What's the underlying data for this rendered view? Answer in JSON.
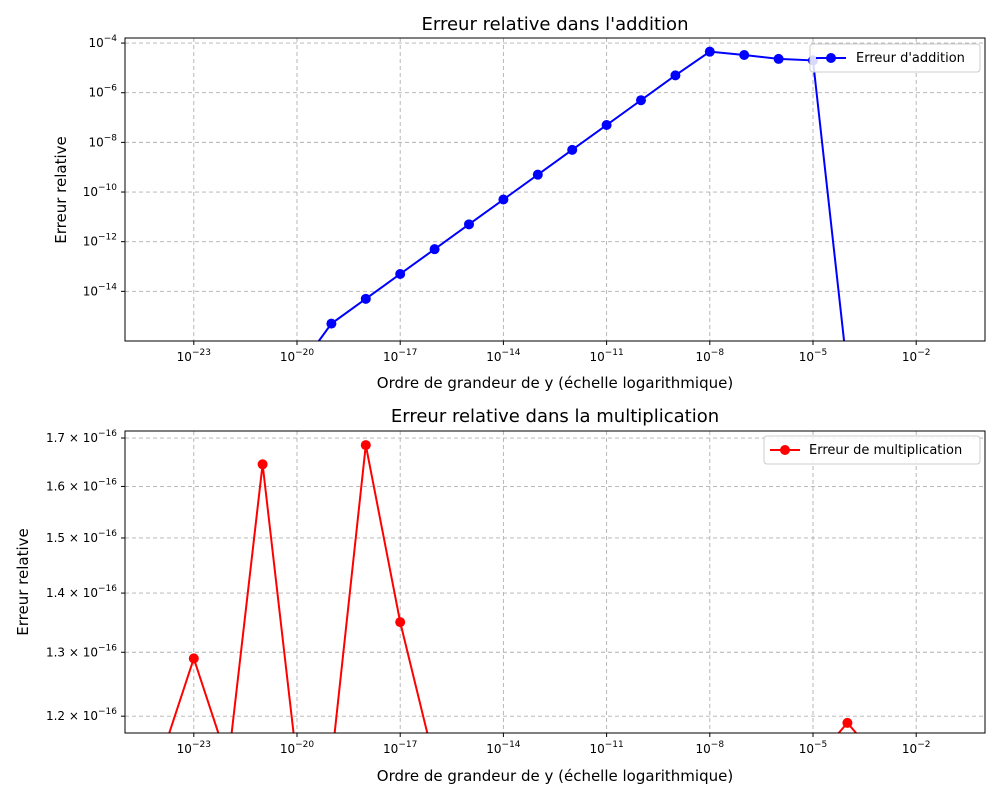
{
  "chart_data": [
    {
      "type": "line",
      "title": "Erreur relative dans l'addition",
      "xlabel": "Ordre de grandeur de y (échelle logarithmique)",
      "ylabel": "Erreur relative",
      "x_scale": "log",
      "y_scale": "log",
      "xlim": [
        1e-25,
        1
      ],
      "ylim": [
        1e-16,
        0.00016
      ],
      "x_ticks": [
        {
          "value": 1e-23,
          "label": "10",
          "exp": "−23"
        },
        {
          "value": 1e-20,
          "label": "10",
          "exp": "−20"
        },
        {
          "value": 1e-17,
          "label": "10",
          "exp": "−17"
        },
        {
          "value": 1e-14,
          "label": "10",
          "exp": "−14"
        },
        {
          "value": 1e-11,
          "label": "10",
          "exp": "−11"
        },
        {
          "value": 1e-08,
          "label": "10",
          "exp": "−8"
        },
        {
          "value": 1e-05,
          "label": "10",
          "exp": "−5"
        },
        {
          "value": 0.01,
          "label": "10",
          "exp": "−2"
        }
      ],
      "y_ticks": [
        {
          "value": 1e-14,
          "label": "10",
          "exp": "−14"
        },
        {
          "value": 1e-12,
          "label": "10",
          "exp": "−12"
        },
        {
          "value": 1e-10,
          "label": "10",
          "exp": "−10"
        },
        {
          "value": 1e-08,
          "label": "10",
          "exp": "−8"
        },
        {
          "value": 1e-06,
          "label": "10",
          "exp": "−6"
        },
        {
          "value": 0.0001,
          "label": "10",
          "exp": "−4"
        }
      ],
      "grid": true,
      "legend_position": "top-right",
      "series": [
        {
          "name": "Erreur d'addition",
          "color": "#0000ff",
          "x": [
            1e-24,
            1e-23,
            1e-22,
            1e-21,
            1e-20,
            1e-19,
            1e-18,
            1e-17,
            1e-16,
            1e-15,
            1e-14,
            1e-13,
            1e-12,
            1e-11,
            1e-10,
            1e-09,
            1e-08,
            1e-07,
            1e-06,
            1e-05,
            0.0001,
            0.001,
            0.01,
            0.1
          ],
          "y": [
            0,
            0,
            0,
            0,
            0,
            5e-16,
            5e-15,
            5e-14,
            5e-13,
            5e-12,
            5e-11,
            5e-10,
            5e-09,
            5e-08,
            5e-07,
            5e-06,
            4.5e-05,
            3.3e-05,
            2.3e-05,
            2e-05,
            0,
            0,
            0,
            0
          ]
        }
      ]
    },
    {
      "type": "line",
      "title": "Erreur relative dans la multiplication",
      "xlabel": "Ordre de grandeur de y (échelle logarithmique)",
      "ylabel": "Erreur relative",
      "x_scale": "log",
      "y_scale": "log",
      "xlim": [
        1e-25,
        1
      ],
      "ylim": [
        1.175e-16,
        1.715e-16
      ],
      "x_ticks": [
        {
          "value": 1e-23,
          "label": "10",
          "exp": "−23"
        },
        {
          "value": 1e-20,
          "label": "10",
          "exp": "−20"
        },
        {
          "value": 1e-17,
          "label": "10",
          "exp": "−17"
        },
        {
          "value": 1e-14,
          "label": "10",
          "exp": "−14"
        },
        {
          "value": 1e-11,
          "label": "10",
          "exp": "−11"
        },
        {
          "value": 1e-08,
          "label": "10",
          "exp": "−8"
        },
        {
          "value": 1e-05,
          "label": "10",
          "exp": "−5"
        },
        {
          "value": 0.01,
          "label": "10",
          "exp": "−2"
        }
      ],
      "y_ticks": [
        {
          "value": 1.2e-16,
          "label": "1.2 × 10",
          "exp": "−16"
        },
        {
          "value": 1.3e-16,
          "label": "1.3 × 10",
          "exp": "−16"
        },
        {
          "value": 1.4e-16,
          "label": "1.4 × 10",
          "exp": "−16"
        },
        {
          "value": 1.5e-16,
          "label": "1.5 × 10",
          "exp": "−16"
        },
        {
          "value": 1.6e-16,
          "label": "1.6 × 10",
          "exp": "−16"
        },
        {
          "value": 1.7e-16,
          "label": "1.7 × 10",
          "exp": "−16"
        }
      ],
      "grid": true,
      "legend_position": "top-right",
      "series": [
        {
          "name": "Erreur de multiplication",
          "color": "#ff0000",
          "x": [
            1e-24,
            1e-23,
            1e-22,
            1e-21,
            1e-20,
            1e-19,
            1e-18,
            1e-17,
            1e-16,
            1e-15,
            1e-14,
            1e-13,
            1e-12,
            1e-11,
            1e-10,
            1e-09,
            1e-08,
            1e-07,
            1e-06,
            1e-05,
            0.0001,
            0.001,
            0.01,
            0.1
          ],
          "y": [
            0,
            1.29e-16,
            0,
            1.645e-16,
            0,
            0,
            1.685e-16,
            1.35e-16,
            0,
            0,
            0,
            0,
            0,
            0,
            0,
            0,
            0,
            0,
            0,
            0,
            1.19e-16,
            0,
            0,
            0
          ]
        }
      ]
    }
  ]
}
